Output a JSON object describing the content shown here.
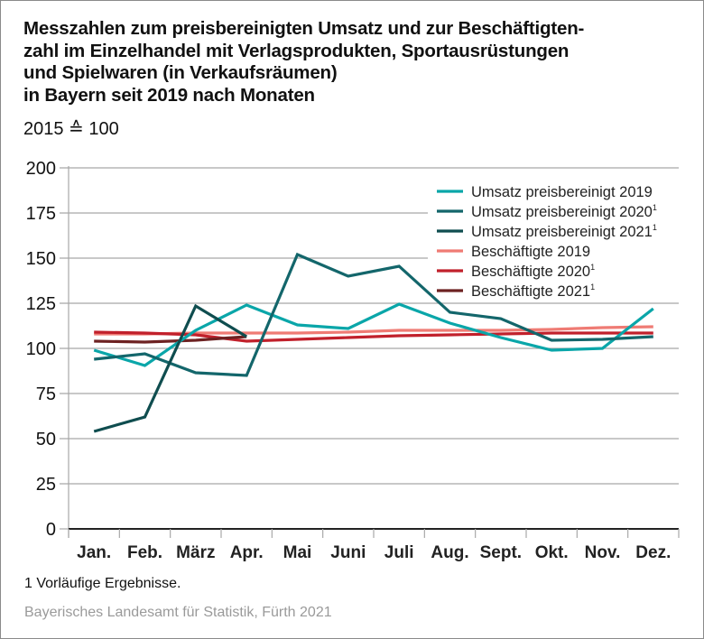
{
  "title_lines": [
    "Messzahlen zum preisbereinigten Umsatz und zur Beschäftigten-",
    "zahl im Einzelhandel mit Verlagsprodukten, Sportausrüstungen",
    "und Spielwaren (in Verkaufsräumen)",
    "in Bayern seit 2019 nach Monaten"
  ],
  "subtitle": "2015 ≙ 100",
  "footnote": "1  Vorläufige Ergebnisse.",
  "source": "Bayerisches Landesamt für Statistik, Fürth 2021",
  "chart_data": {
    "type": "line",
    "title": "Messzahlen zum preisbereinigten Umsatz und zur Beschäftigtenzahl im Einzelhandel mit Verlagsprodukten, Sportausrüstungen und Spielwaren (in Verkaufsräumen) in Bayern seit 2019 nach Monaten",
    "subtitle": "2015 ≙ 100",
    "xlabel": "",
    "ylabel": "",
    "categories": [
      "Jan.",
      "Feb.",
      "März",
      "Apr.",
      "Mai",
      "Juni",
      "Juli",
      "Aug.",
      "Sept.",
      "Okt.",
      "Nov.",
      "Dez."
    ],
    "ylim": [
      0,
      200
    ],
    "yticks": [
      0,
      25,
      50,
      75,
      100,
      125,
      150,
      175,
      200
    ],
    "grid": true,
    "legend_position": "top-right",
    "series": [
      {
        "name": "Umsatz preisbereinigt 2019",
        "superscript": "",
        "color": "#0aa6a9",
        "values": [
          99,
          90.5,
          110,
          124,
          113,
          111,
          124.5,
          114,
          106,
          99,
          100,
          122
        ]
      },
      {
        "name": "Umsatz preisbereinigt 2020",
        "superscript": "1",
        "color": "#13666b",
        "values": [
          94,
          97,
          86.5,
          85,
          152,
          140,
          145.5,
          120,
          116.5,
          104.5,
          105,
          106.5
        ]
      },
      {
        "name": "Umsatz preisbereinigt 2021",
        "superscript": "1",
        "color": "#0f4d4f",
        "values": [
          54,
          62,
          123.5,
          106.5
        ]
      },
      {
        "name": "Beschäftigte 2019",
        "superscript": "",
        "color": "#ef7b74",
        "values": [
          108,
          108,
          108.5,
          108.5,
          108.5,
          109,
          110,
          110,
          110,
          110.5,
          111.5,
          112
        ]
      },
      {
        "name": "Beschäftigte 2020",
        "superscript": "1",
        "color": "#c1202b",
        "values": [
          109,
          108.5,
          107.5,
          104,
          105,
          106,
          107,
          107.5,
          108,
          108.5,
          108.5,
          108.5
        ]
      },
      {
        "name": "Beschäftigte 2021",
        "superscript": "1",
        "color": "#6d2222",
        "values": [
          104,
          103.5,
          104.5,
          106.5
        ]
      }
    ]
  }
}
